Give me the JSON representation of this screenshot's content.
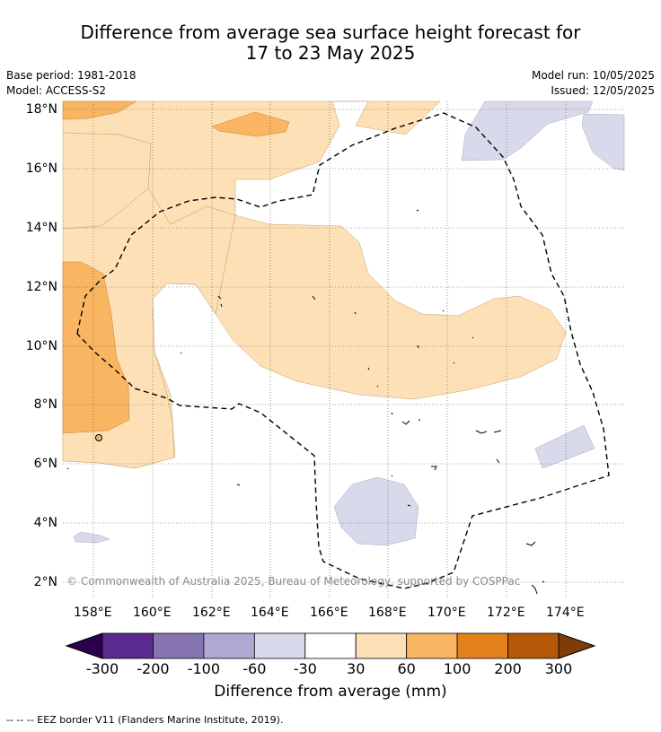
{
  "header": {
    "title_line1": "Difference from average sea surface height forecast for",
    "title_line2": "17 to 23 May 2025",
    "base_period": "Base period: 1981-2018",
    "model": "Model: ACCESS-S2",
    "model_run": "Model run: 10/05/2025",
    "issued": "Issued: 12/05/2025"
  },
  "map": {
    "lon_ticks": [
      "158°E",
      "160°E",
      "162°E",
      "164°E",
      "166°E",
      "168°E",
      "170°E",
      "172°E",
      "174°E"
    ],
    "lat_ticks": [
      "18°N",
      "16°N",
      "14°N",
      "12°N",
      "10°N",
      "8°N",
      "6°N",
      "4°N",
      "2°N"
    ],
    "copyright": "© Commonwealth of Australia 2025, Bureau of Meteorology, supported by COSPPac"
  },
  "colorbar": {
    "labels": [
      "-300",
      "-200",
      "-100",
      "-60",
      "-30",
      "30",
      "60",
      "100",
      "200",
      "300"
    ],
    "colors": [
      "#5b2a8f",
      "#8574b0",
      "#b0a8d3",
      "#d9d9ec",
      "#ffffff",
      "#fde0b5",
      "#f9b562",
      "#e3821c",
      "#b35806"
    ],
    "under_color": "#2d004b",
    "over_color": "#7f3b08",
    "label": "Difference from average (mm)"
  },
  "footer": {
    "legend": "--  --  -- EEZ border V11 (Flanders Marine Institute, 2019)."
  }
}
